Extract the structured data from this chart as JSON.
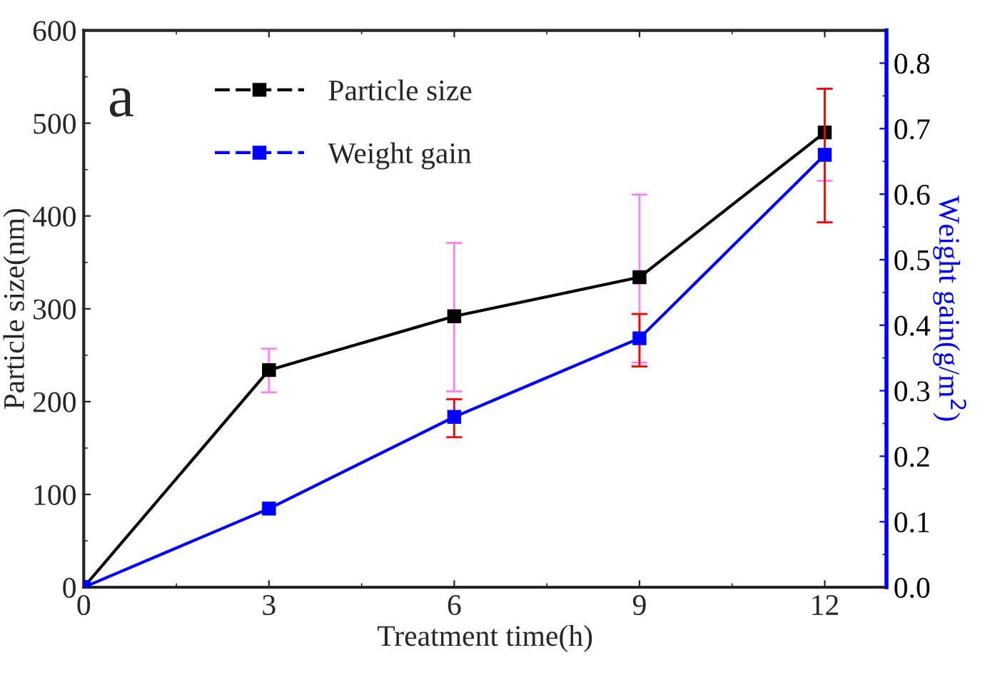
{
  "chart_data": {
    "type": "line",
    "x": [
      0,
      3,
      6,
      9,
      12
    ],
    "xlim": [
      0,
      13
    ],
    "xticks": [
      0,
      3,
      6,
      9,
      12
    ],
    "ylim": [
      0,
      600
    ],
    "yticks": [
      0,
      100,
      200,
      300,
      400,
      500,
      600
    ],
    "y2lim": [
      0,
      0.85
    ],
    "y2ticks": [
      {
        "value": 0,
        "label": "0.0"
      },
      {
        "value": 0.1,
        "label": "0.1"
      },
      {
        "value": 0.2,
        "label": "0.2"
      },
      {
        "value": 0.3,
        "label": "0.3"
      },
      {
        "value": 0.4,
        "label": "0.4"
      },
      {
        "value": 0.5,
        "label": "0.5"
      },
      {
        "value": 0.6,
        "label": "0.6"
      },
      {
        "value": 0.7,
        "label": "0.7"
      },
      {
        "value": 0.8,
        "label": "0.8"
      }
    ],
    "xlabel": "Treatment time(h)",
    "ylabel": "Particle size(nm)",
    "y2label": "Weight gain(g/m$^{2}$)",
    "annotations": [
      "a"
    ],
    "legend": "top left",
    "marker": "square",
    "line_style": "solid",
    "grid": false,
    "series": [
      {
        "name": "Particle size",
        "color": "#000000",
        "values": [
          0,
          234,
          292,
          334,
          490
        ],
        "errors": [
          null,
          [
            210,
            257
          ],
          [
            211,
            371
          ],
          [
            242,
            423
          ],
          [
            438,
            537
          ]
        ]
      },
      {
        "name": "Weight gain",
        "color": "#0000ff",
        "axis": "y2",
        "values": [
          0,
          0.12,
          0.26,
          0.38,
          0.66
        ],
        "errors": [
          null,
          null,
          [
            0.229,
            0.287
          ],
          [
            0.337,
            0.417
          ],
          [
            0.557,
            0.761
          ]
        ]
      }
    ]
  }
}
